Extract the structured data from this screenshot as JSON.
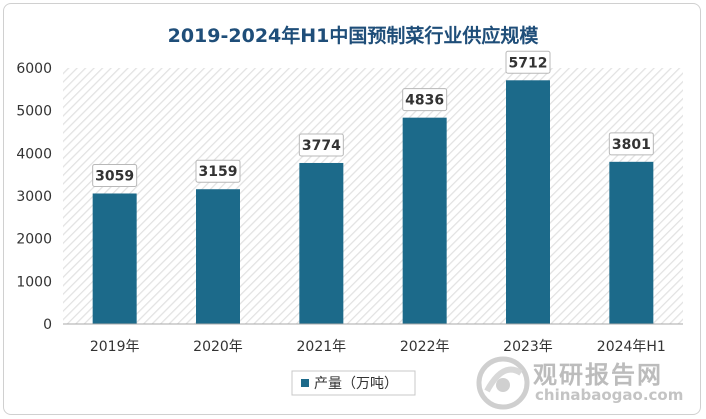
{
  "chart_data": {
    "type": "bar",
    "title": "2019-2024年H1中国预制菜行业供应规模",
    "categories": [
      "2019年",
      "2020年",
      "2021年",
      "2022年",
      "2023年",
      "2024年H1"
    ],
    "series": [
      {
        "name": "产量（万吨）",
        "values": [
          3059,
          3159,
          3774,
          4836,
          5712,
          3801
        ]
      }
    ],
    "data_labels": [
      "3059",
      "3159",
      "3774",
      "4836",
      "5712",
      "3801"
    ],
    "yticks": [
      "0",
      "1000",
      "2000",
      "3000",
      "4000",
      "5000",
      "6000"
    ],
    "ylim": [
      0,
      6000
    ],
    "legend_position": "bottom",
    "colors": {
      "bar": "#1c6a8a",
      "title": "#1f4e79",
      "hatch": "#e2e2e2"
    }
  },
  "watermark": {
    "brand": "观研报告网",
    "url": "chinabaogao.com"
  }
}
